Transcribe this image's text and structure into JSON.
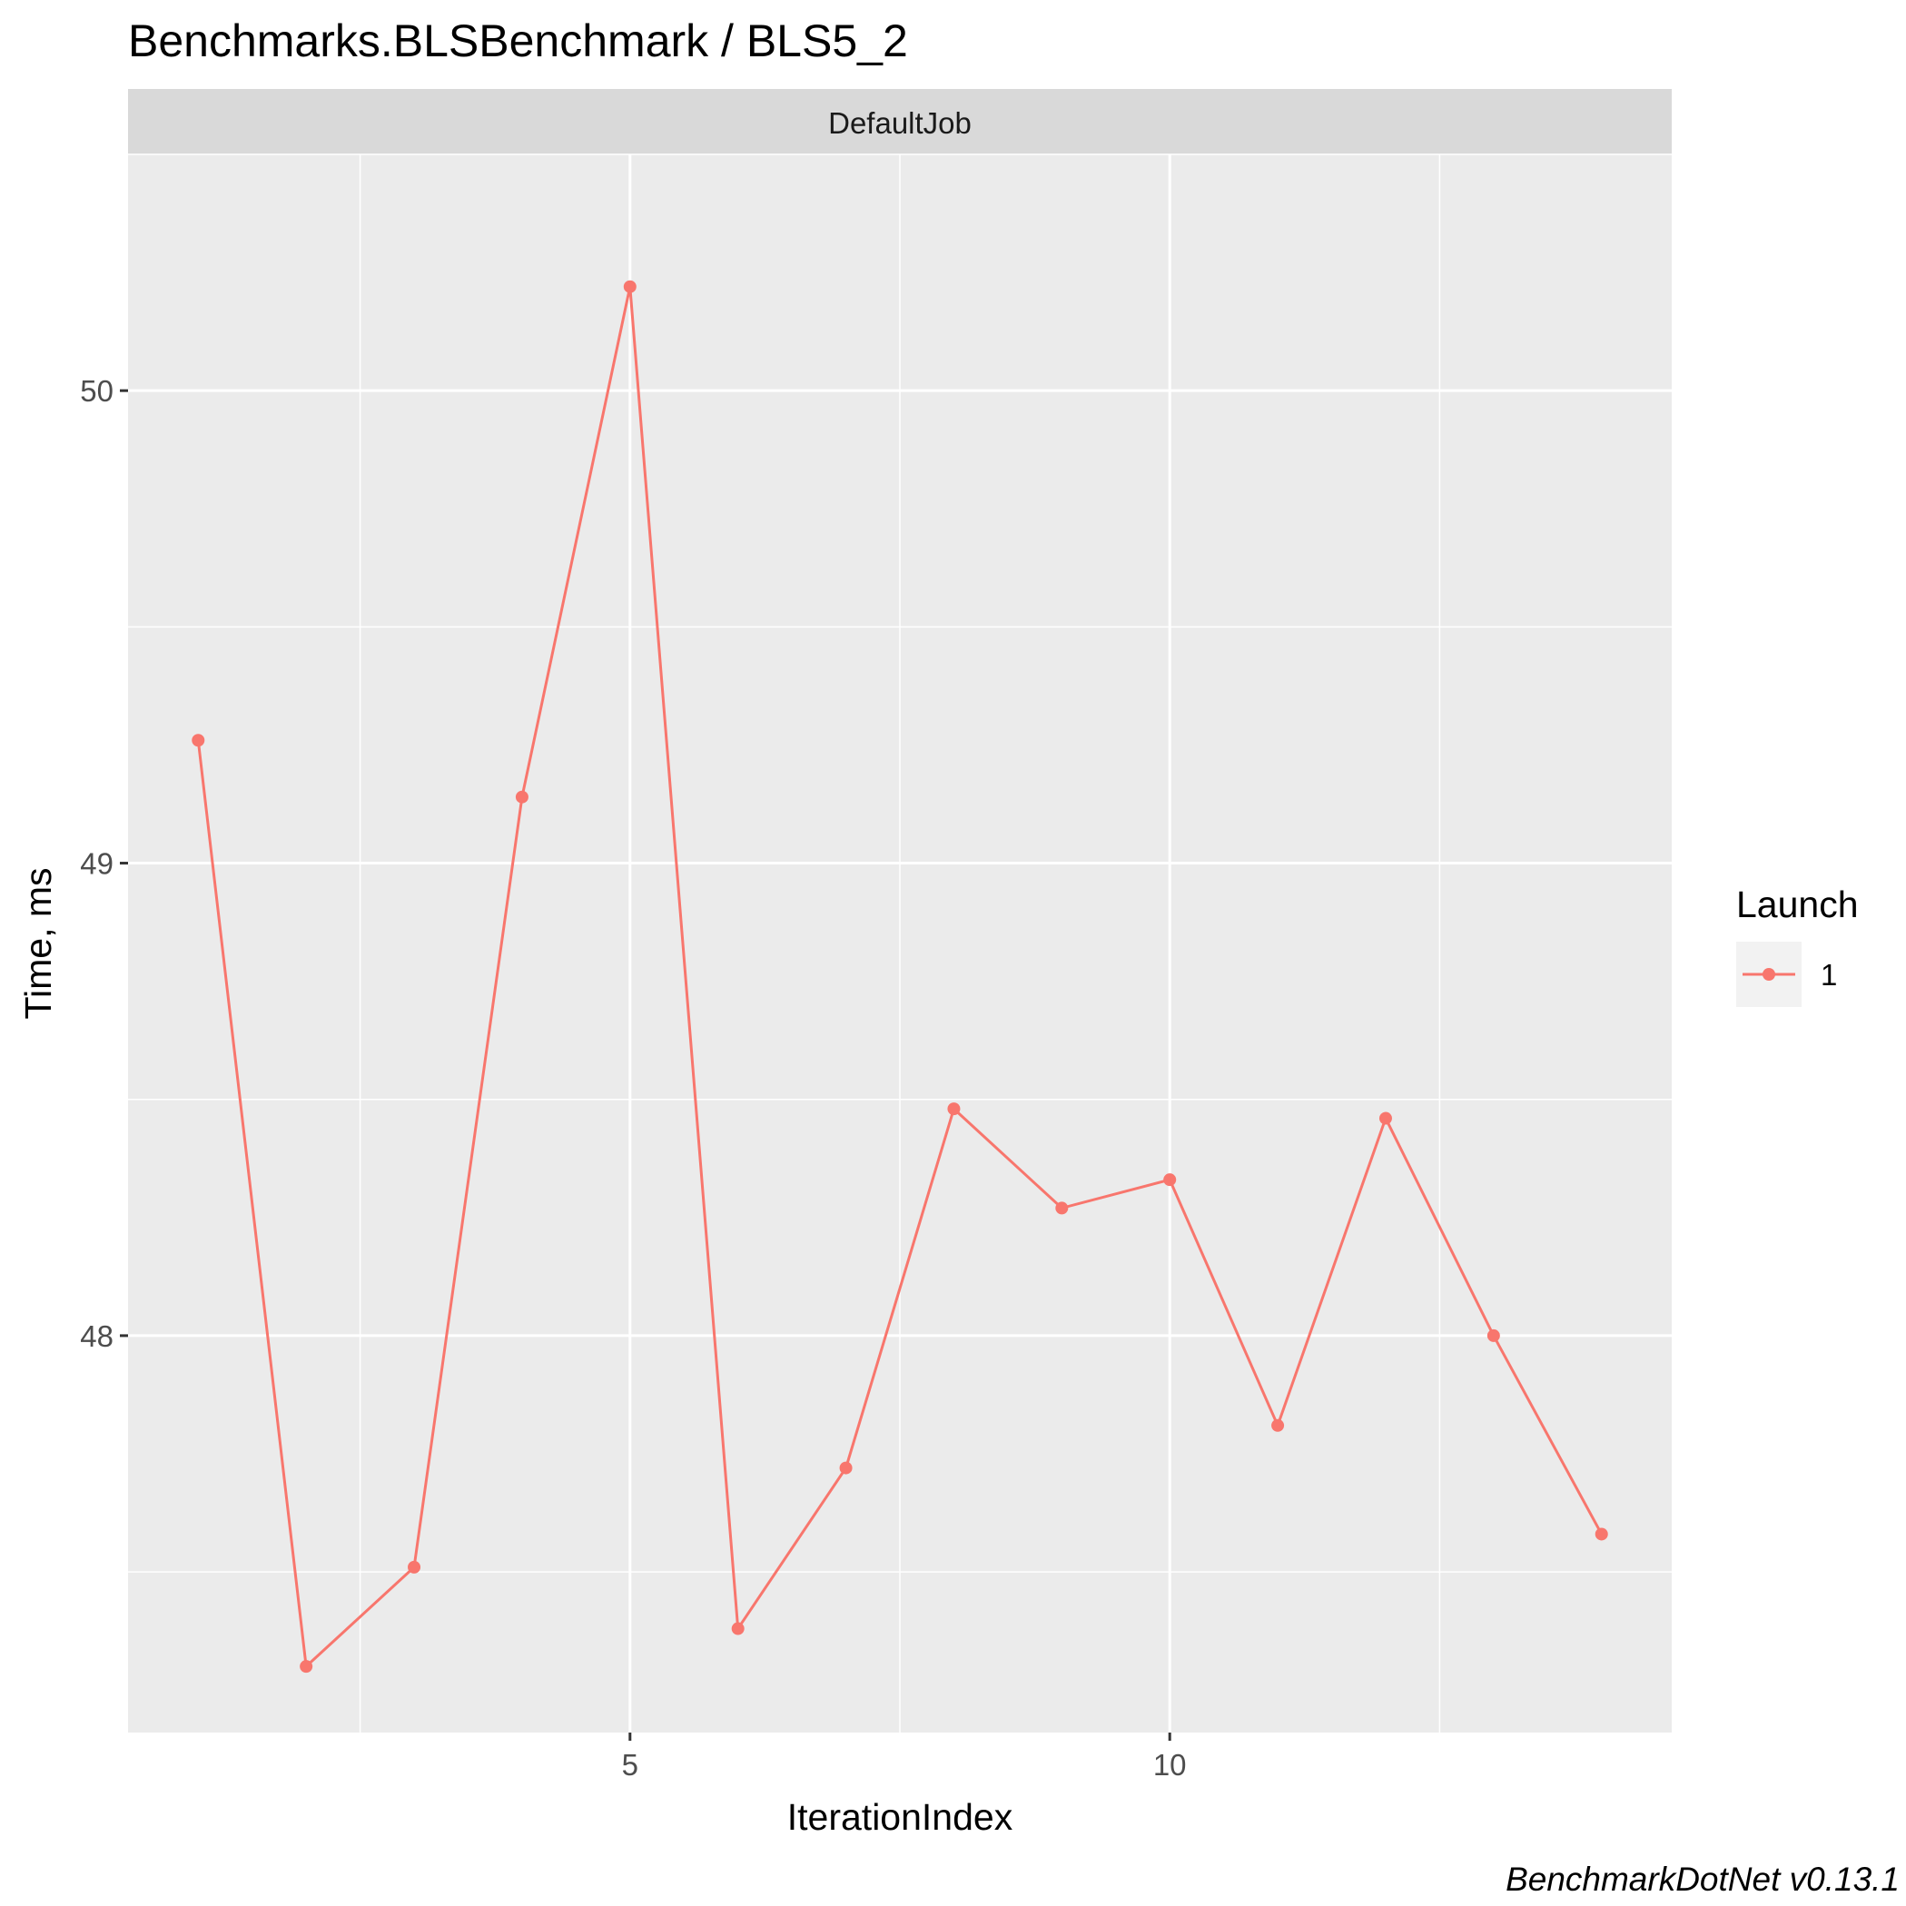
{
  "chart_data": {
    "type": "line",
    "title": "Benchmarks.BLSBenchmark / BLS5_2",
    "facet_label": "DefaultJob",
    "xlabel": "IterationIndex",
    "ylabel": "Time, ms",
    "caption": "BenchmarkDotNet v0.13.1",
    "x_ticks": [
      5,
      10
    ],
    "y_ticks": [
      48,
      49,
      50
    ],
    "xlim": [
      0.35,
      14.65
    ],
    "ylim": [
      47.16,
      50.5
    ],
    "grid": true,
    "legend": {
      "title": "Launch",
      "position": "right",
      "entries": [
        "1"
      ]
    },
    "series": [
      {
        "name": "1",
        "color": "#F8766D",
        "x": [
          1,
          2,
          3,
          4,
          5,
          6,
          7,
          8,
          9,
          10,
          11,
          12,
          13,
          14
        ],
        "values": [
          49.26,
          47.3,
          47.51,
          49.14,
          50.22,
          47.38,
          47.72,
          48.48,
          48.27,
          48.33,
          47.81,
          48.46,
          48.0,
          47.58
        ]
      }
    ]
  }
}
